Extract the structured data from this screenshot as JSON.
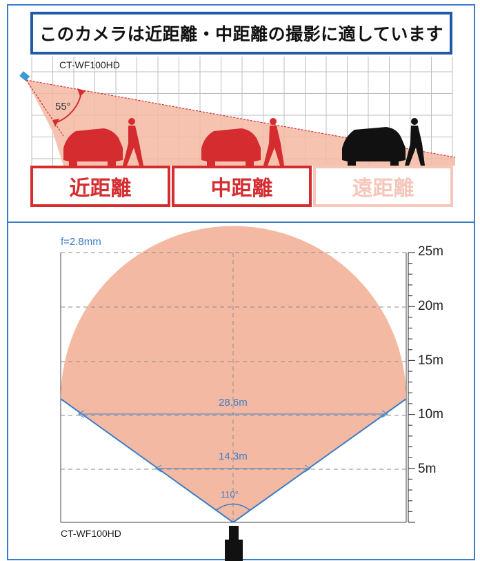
{
  "header": {
    "title": "このカメラは近距離・中距離の撮影に適しています",
    "model": "CT-WF100HD",
    "angle": "55°"
  },
  "ranges": [
    {
      "label": "近距離",
      "color": "#d42c2f",
      "active": true
    },
    {
      "label": "中距離",
      "color": "#d42c2f",
      "active": true
    },
    {
      "label": "遠距離",
      "color": "#f5c7ba",
      "active": false
    }
  ],
  "silhouettes": {
    "near_color": "#d42c2f",
    "mid_color": "#d42c2f",
    "far_color": "#000000"
  },
  "coverage": {
    "lens": "f=2.8mm",
    "model": "CT-WF100HD",
    "fov_label": "110°",
    "distance_labels": [
      "25m",
      "20m",
      "15m",
      "10m",
      "5m"
    ],
    "width_labels": [
      "28.6m",
      "14.3m"
    ],
    "fill_color": "#f4b9a3",
    "line_color": "#3b7cc6"
  }
}
